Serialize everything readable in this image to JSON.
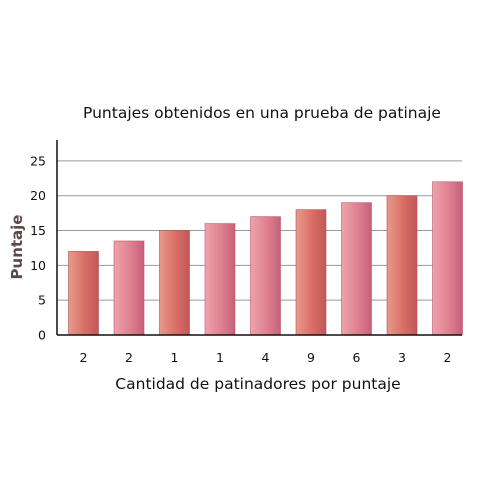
{
  "chart_data": {
    "type": "bar",
    "title": "Puntajes obtenidos en una prueba de patinaje",
    "xlabel": "Cantidad de patinadores por puntaje",
    "ylabel": "Puntaje",
    "categories": [
      "2",
      "2",
      "1",
      "1",
      "4",
      "9",
      "6",
      "3",
      "2"
    ],
    "values": [
      12,
      13.5,
      15,
      16,
      17,
      18,
      19,
      20,
      22
    ],
    "ylim": [
      0,
      28
    ],
    "yticks": [
      0,
      5,
      10,
      15,
      20,
      25
    ],
    "grid": true,
    "bar_colors": [
      "#d86868",
      "#e08a98",
      "#d86868",
      "#e08a98",
      "#e08a98",
      "#d86868",
      "#e08a98",
      "#d86868",
      "#e08a98"
    ],
    "gridline_color": "#999999",
    "axis_color": "#111111"
  }
}
